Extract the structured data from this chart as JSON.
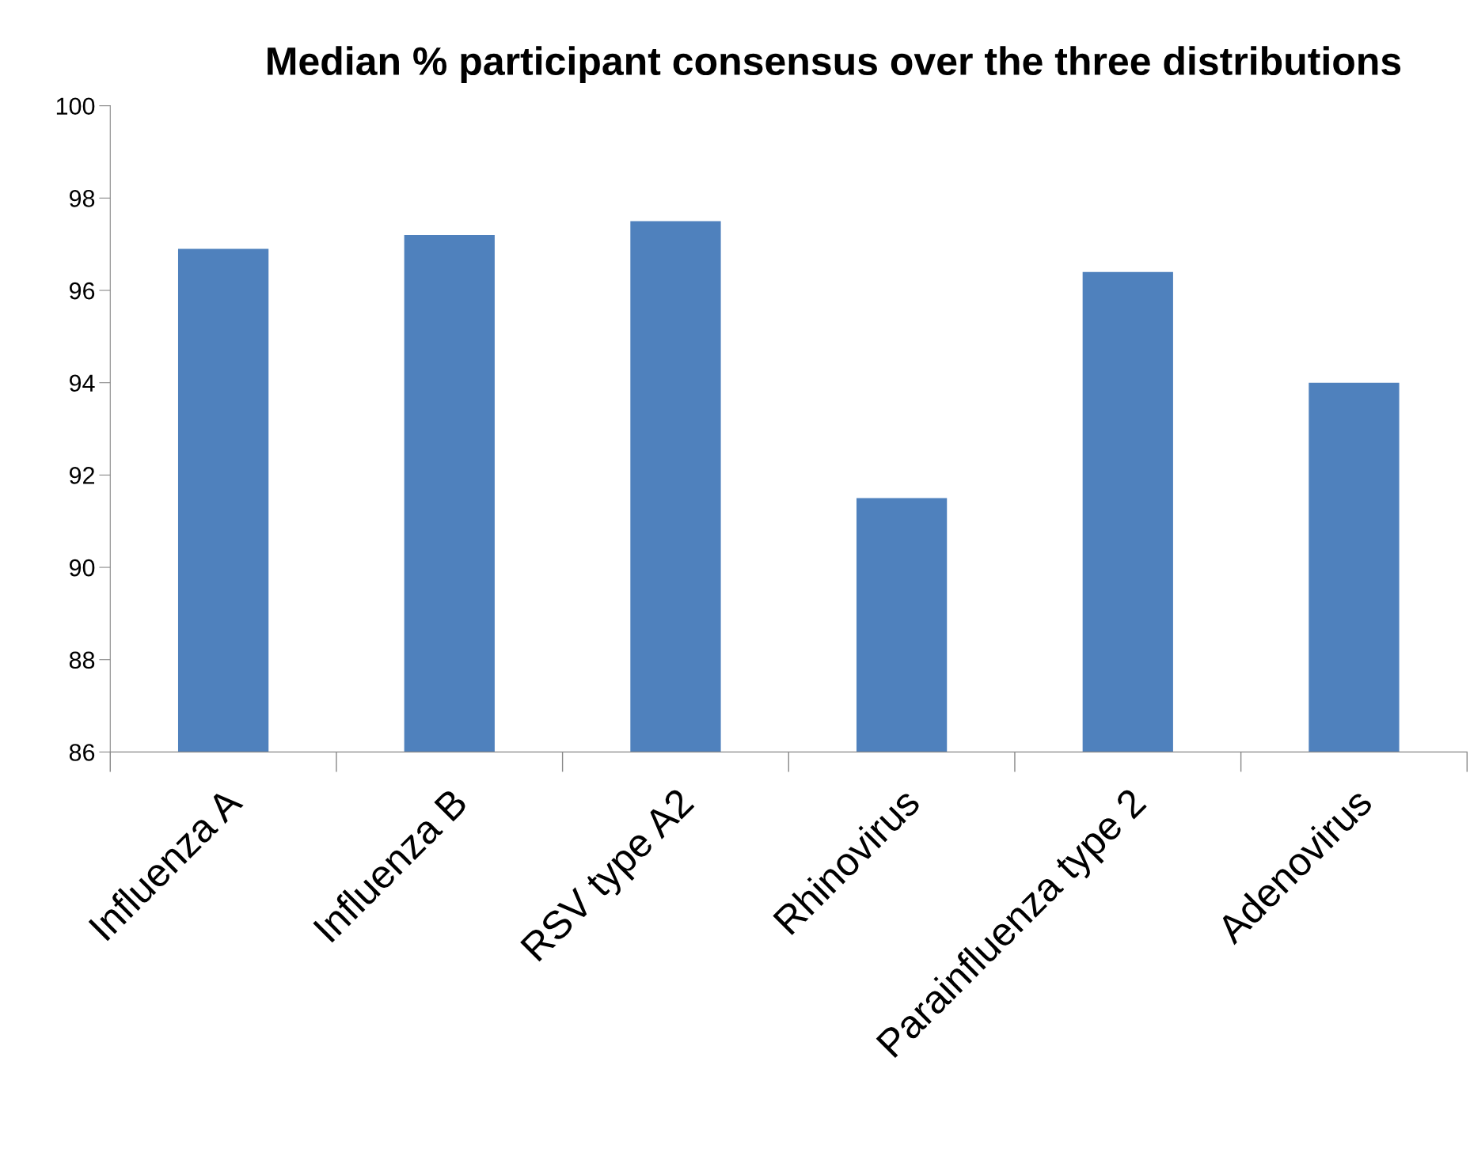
{
  "chart_data": {
    "type": "bar",
    "title": "Median % participant consensus over the three distributions",
    "categories": [
      "Influenza A",
      "Influenza B",
      "RSV type A2",
      "Rhinovirus",
      "Parainfluenza type 2",
      "Adenovirus"
    ],
    "values": [
      96.9,
      97.2,
      97.5,
      91.5,
      96.4,
      94.0
    ],
    "color": "#4f81bd",
    "ylim": [
      86,
      100
    ],
    "yticks": [
      86,
      88,
      90,
      92,
      94,
      96,
      98,
      100
    ],
    "grid": false,
    "legend": false
  }
}
